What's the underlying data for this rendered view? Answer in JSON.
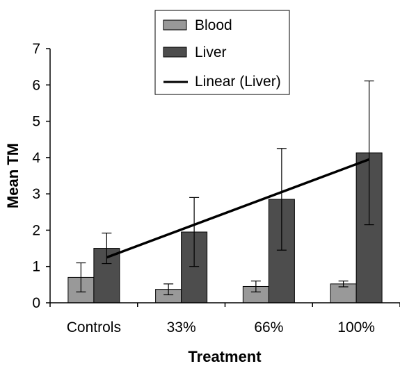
{
  "chart_data": {
    "type": "bar",
    "categories": [
      "Controls",
      "33%",
      "66%",
      "100%"
    ],
    "series": [
      {
        "name": "Blood",
        "values": [
          0.7,
          0.37,
          0.45,
          0.52
        ],
        "error": [
          0.4,
          0.15,
          0.15,
          0.08
        ],
        "color": "#999999"
      },
      {
        "name": "Liver",
        "values": [
          1.5,
          1.95,
          2.85,
          4.13
        ],
        "error": [
          0.42,
          0.95,
          1.4,
          1.98
        ],
        "color": "#4d4d4d"
      }
    ],
    "trendline": {
      "name": "Linear (Liver)",
      "of_series": "Liver",
      "start": 1.25,
      "end": 3.95
    },
    "xlabel": "Treatment",
    "ylabel": "Mean TM",
    "ylim": [
      0,
      7
    ],
    "yticks": [
      0,
      1,
      2,
      3,
      4,
      5,
      6,
      7
    ],
    "grid": false,
    "legend_position": "top-center"
  }
}
